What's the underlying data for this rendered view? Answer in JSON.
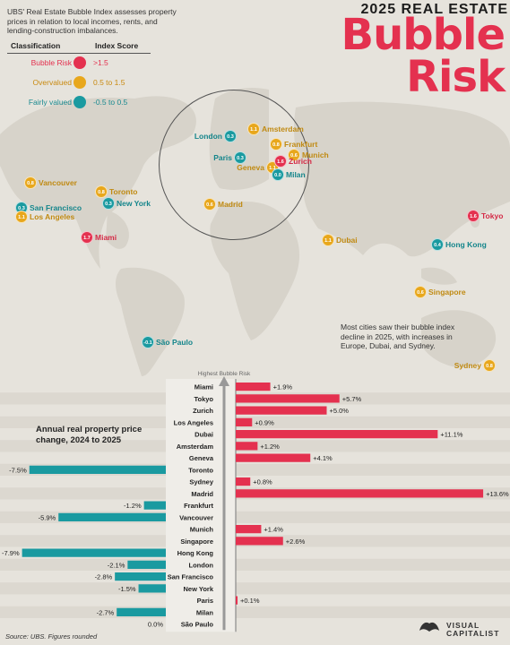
{
  "header": {
    "top_title": "2025 REAL ESTATE",
    "big_title_line1": "Bubble",
    "big_title_line2": "Risk"
  },
  "intro": "UBS' Real Estate Bubble Index assesses property prices in relation to local incomes, rents, and lending-construction imbalances.",
  "legend": {
    "classification_label": "Classification",
    "index_label": "Index Score",
    "items": [
      {
        "label": "Bubble Risk",
        "range": ">1.5",
        "color": "#e4314f"
      },
      {
        "label": "Overvalued",
        "range": "0.5 to 1.5",
        "color": "#e8a71c"
      },
      {
        "label": "Fairly valued",
        "range": "-0.5 to 0.5",
        "color": "#1a9aa0"
      }
    ]
  },
  "map_cities": [
    {
      "name": "London",
      "score": "0.3",
      "class": "fair"
    },
    {
      "name": "Amsterdam",
      "score": "1.1",
      "class": "over"
    },
    {
      "name": "Frankfurt",
      "score": "0.8",
      "class": "over"
    },
    {
      "name": "Paris",
      "score": "0.3",
      "class": "fair"
    },
    {
      "name": "Munich",
      "score": "0.6",
      "class": "over"
    },
    {
      "name": "Geneva",
      "score": "1.1",
      "class": "over"
    },
    {
      "name": "Zurich",
      "score": "1.6",
      "class": "bubble"
    },
    {
      "name": "Milan",
      "score": "0.0",
      "class": "fair"
    },
    {
      "name": "Madrid",
      "score": "0.6",
      "class": "over"
    },
    {
      "name": "Vancouver",
      "score": "0.8",
      "class": "over"
    },
    {
      "name": "Toronto",
      "score": "0.8",
      "class": "over"
    },
    {
      "name": "San Francisco",
      "score": "0.3",
      "class": "fair"
    },
    {
      "name": "New York",
      "score": "0.3",
      "class": "fair"
    },
    {
      "name": "Los Angeles",
      "score": "1.1",
      "class": "over"
    },
    {
      "name": "Miami",
      "score": "1.7",
      "class": "bubble"
    },
    {
      "name": "Tokyo",
      "score": "1.6",
      "class": "bubble"
    },
    {
      "name": "Dubai",
      "score": "1.1",
      "class": "over"
    },
    {
      "name": "Hong Kong",
      "score": "0.4",
      "class": "fair"
    },
    {
      "name": "Singapore",
      "score": "0.6",
      "class": "over"
    },
    {
      "name": "São Paulo",
      "score": "-0.1",
      "class": "fair"
    },
    {
      "name": "Sydney",
      "score": "0.8",
      "class": "over"
    }
  ],
  "note": "Most cities saw their bubble index decline in 2025, with increases in Europe, Dubai, and Sydney.",
  "chart_data": {
    "type": "bar",
    "title": "Annual real property price change, 2024 to 2025",
    "top_label": "Highest Bubble Risk",
    "bottom_label": "Lowest Bubble Risk",
    "categories": [
      "Miami",
      "Tokyo",
      "Zurich",
      "Los Angeles",
      "Dubai",
      "Amsterdam",
      "Geneva",
      "Toronto",
      "Sydney",
      "Madrid",
      "Frankfurt",
      "Vancouver",
      "Munich",
      "Singapore",
      "Hong Kong",
      "London",
      "San Francisco",
      "New York",
      "Paris",
      "Milan",
      "São Paulo"
    ],
    "values": [
      1.9,
      5.7,
      5.0,
      0.9,
      11.1,
      1.2,
      4.1,
      -7.5,
      0.8,
      13.6,
      -1.2,
      -5.9,
      1.4,
      2.6,
      -7.9,
      -2.1,
      -2.8,
      -1.5,
      0.1,
      -2.7,
      0.0
    ],
    "labels": [
      "+1.9%",
      "+5.7%",
      "+5.0%",
      "+0.9%",
      "+11.1%",
      "+1.2%",
      "+4.1%",
      "-7.5%",
      "+0.8%",
      "+13.6%",
      "-1.2%",
      "-5.9%",
      "+1.4%",
      "+2.6%",
      "-7.9%",
      "-2.1%",
      "-2.8%",
      "-1.5%",
      "+0.1%",
      "-2.7%",
      "0.0%"
    ],
    "positive_color": "#e4314f",
    "negative_color": "#1a9aa0"
  },
  "footer": {
    "source": "Source: UBS. Figures rounded",
    "brand_line1": "VISUAL",
    "brand_line2": "CAPITALIST"
  }
}
